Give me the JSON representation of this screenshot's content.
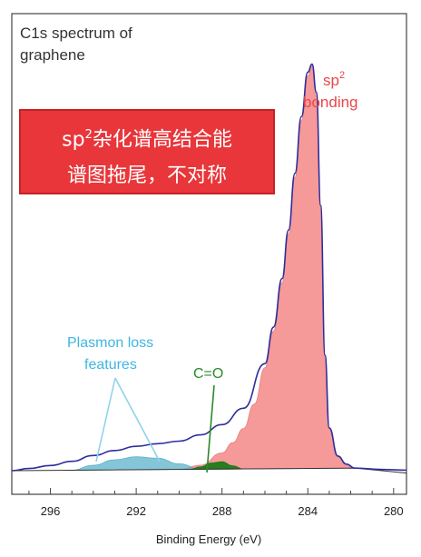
{
  "chart_data": {
    "type": "area",
    "title_lines": [
      "C1s spectrum of",
      "graphene"
    ],
    "xlabel": "Binding Energy (eV)",
    "ylabel": "",
    "xlim": [
      297.8,
      279.4
    ],
    "x_reversed": true,
    "x_ticks": [
      296,
      292,
      288,
      284,
      280
    ],
    "series": [
      {
        "name": "sp² bonding",
        "color": "#f59494",
        "x": [
          290.0,
          289.0,
          288.0,
          287.5,
          287.0,
          286.5,
          286.0,
          285.6,
          285.2,
          284.9,
          284.6,
          284.3,
          284.0,
          283.8,
          283.6,
          283.4,
          283.2,
          283.0,
          282.6,
          282.2,
          281.8
        ],
        "y": [
          0.0,
          0.01,
          0.04,
          0.065,
          0.1,
          0.16,
          0.25,
          0.34,
          0.46,
          0.58,
          0.72,
          0.86,
          0.97,
          1.0,
          0.93,
          0.65,
          0.28,
          0.1,
          0.03,
          0.01,
          0.0
        ]
      },
      {
        "name": "Plasmon loss features",
        "color": "#5bb3c9",
        "x": [
          295.0,
          294.0,
          293.0,
          292.0,
          291.0,
          290.0,
          289.0
        ],
        "y": [
          0.0,
          0.012,
          0.025,
          0.032,
          0.028,
          0.014,
          0.0
        ]
      },
      {
        "name": "C=O",
        "color": "#127a12",
        "x": [
          289.5,
          289.0,
          288.5,
          288.0,
          287.5,
          287.0
        ],
        "y": [
          0.0,
          0.006,
          0.015,
          0.018,
          0.008,
          0.0
        ]
      },
      {
        "name": "envelope",
        "color": "#2e2e9c",
        "x": [
          297.8,
          297.0,
          296.0,
          295.0,
          294.0,
          293.0,
          292.0,
          291.0,
          290.0,
          289.0,
          288.0,
          287.0,
          286.0,
          285.6,
          285.2,
          284.9,
          284.6,
          284.3,
          284.0,
          283.8,
          283.6,
          283.4,
          283.2,
          283.0,
          282.6,
          282.2,
          281.8,
          280.5,
          279.4
        ],
        "y": [
          0.0,
          0.005,
          0.012,
          0.022,
          0.036,
          0.048,
          0.058,
          0.064,
          0.07,
          0.085,
          0.11,
          0.15,
          0.26,
          0.35,
          0.47,
          0.59,
          0.73,
          0.87,
          0.98,
          1.0,
          0.93,
          0.65,
          0.28,
          0.1,
          0.03,
          0.01,
          0.0,
          -0.004,
          -0.006
        ]
      }
    ],
    "annotations": {
      "sp2_label_main": "sp",
      "sp2_label_sup": "2",
      "sp2_label_line2": "bonding",
      "plasmon_line1": "Plasmon loss",
      "plasmon_line2": "features",
      "co_label": "C=O"
    },
    "grid": false,
    "legend": "none"
  },
  "note_box": {
    "line1_pre": "sp",
    "line1_sup": "2",
    "line1_post": "杂化谱高结合能",
    "line2": "谱图拖尾，不对称"
  },
  "colors": {
    "sp2_fill": "#f59494",
    "plasmon_fill": "#5bb3c9",
    "co_fill": "#127a12",
    "envelope": "#2e2e9c",
    "note_bg": "#e8363a"
  }
}
